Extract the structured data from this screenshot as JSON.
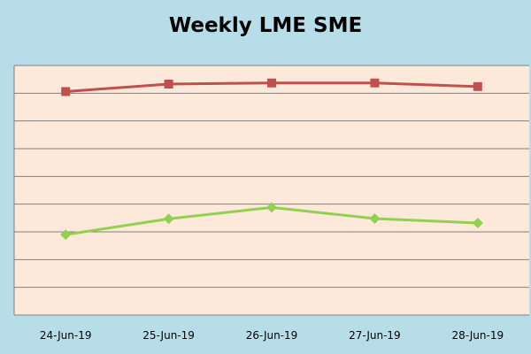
{
  "chart_data": {
    "type": "line",
    "title": "Weekly LME SME",
    "categories": [
      "24-Jun-19",
      "25-Jun-19",
      "26-Jun-19",
      "27-Jun-19",
      "28-Jun-19"
    ],
    "series": [
      {
        "values": [
          8.06,
          8.33,
          8.37,
          8.37,
          8.24
        ],
        "color": "#c0504d",
        "marker": "square"
      },
      {
        "values": [
          2.9,
          3.47,
          3.88,
          3.48,
          3.32
        ],
        "color": "#92d050",
        "marker": "diamond"
      }
    ],
    "ylim": [
      0,
      9
    ],
    "grid": true,
    "axis_tick_labels_shown": false,
    "legend": "none",
    "background_color": "#b7dde8",
    "plot_background_color": "#fde9d9",
    "gridline_color": "#808080"
  }
}
